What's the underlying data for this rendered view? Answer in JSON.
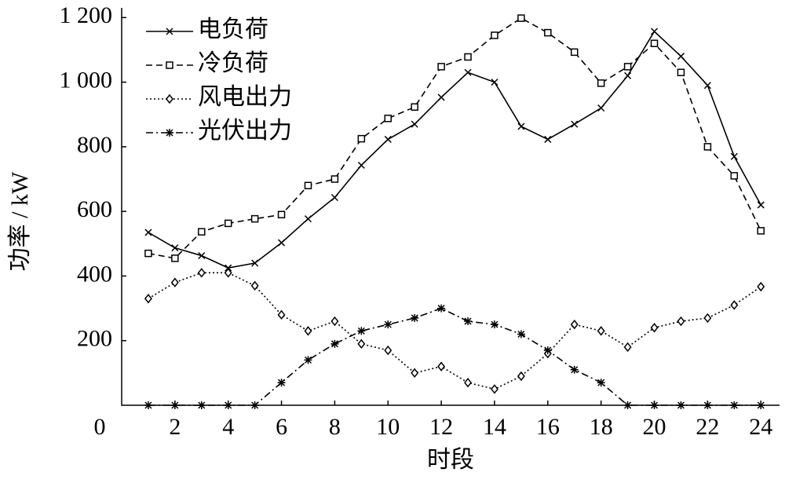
{
  "chart_data": {
    "type": "line",
    "x_label": "时段",
    "y_label": "功率 / kW",
    "x": [
      1,
      2,
      3,
      4,
      5,
      6,
      7,
      8,
      9,
      10,
      11,
      12,
      13,
      14,
      15,
      16,
      17,
      18,
      19,
      20,
      21,
      22,
      23,
      24
    ],
    "xlim": [
      0,
      24.7
    ],
    "ylim": [
      0,
      1230
    ],
    "xticks": [
      0,
      2,
      4,
      6,
      8,
      10,
      12,
      14,
      16,
      18,
      20,
      22,
      24
    ],
    "yticks": [
      200,
      400,
      600,
      800,
      {
        "value": 1000,
        "label": "1 000"
      },
      {
        "value": 1200,
        "label": "1 200"
      }
    ],
    "legend": "upper-left",
    "series": [
      {
        "name": "电负荷",
        "color": "#000000",
        "dash": "solid",
        "marker": "x",
        "values": [
          535,
          487,
          463,
          425,
          440,
          503,
          577,
          643,
          743,
          823,
          870,
          953,
          1030,
          1000,
          863,
          823,
          870,
          920,
          1020,
          1157,
          1080,
          990,
          770,
          620
        ]
      },
      {
        "name": "冷负荷",
        "color": "#000000",
        "dash": "dashed",
        "marker": "square",
        "values": [
          470,
          455,
          537,
          563,
          577,
          590,
          680,
          700,
          825,
          888,
          923,
          1048,
          1078,
          1145,
          1198,
          1153,
          1093,
          997,
          1048,
          1120,
          1030,
          800,
          710,
          540
        ]
      },
      {
        "name": "风电出力",
        "color": "#000000",
        "dash": "dotted",
        "marker": "diamond",
        "values": [
          330,
          380,
          410,
          410,
          370,
          280,
          230,
          260,
          190,
          170,
          100,
          120,
          70,
          50,
          90,
          160,
          250,
          230,
          180,
          240,
          260,
          270,
          310,
          367
        ]
      },
      {
        "name": "光伏出力",
        "color": "#000000",
        "dash": "dashdot",
        "marker": "star",
        "values": [
          0,
          0,
          0,
          0,
          0,
          70,
          140,
          190,
          230,
          250,
          270,
          300,
          260,
          250,
          220,
          170,
          110,
          70,
          0,
          0,
          0,
          0,
          0,
          0
        ]
      }
    ]
  }
}
